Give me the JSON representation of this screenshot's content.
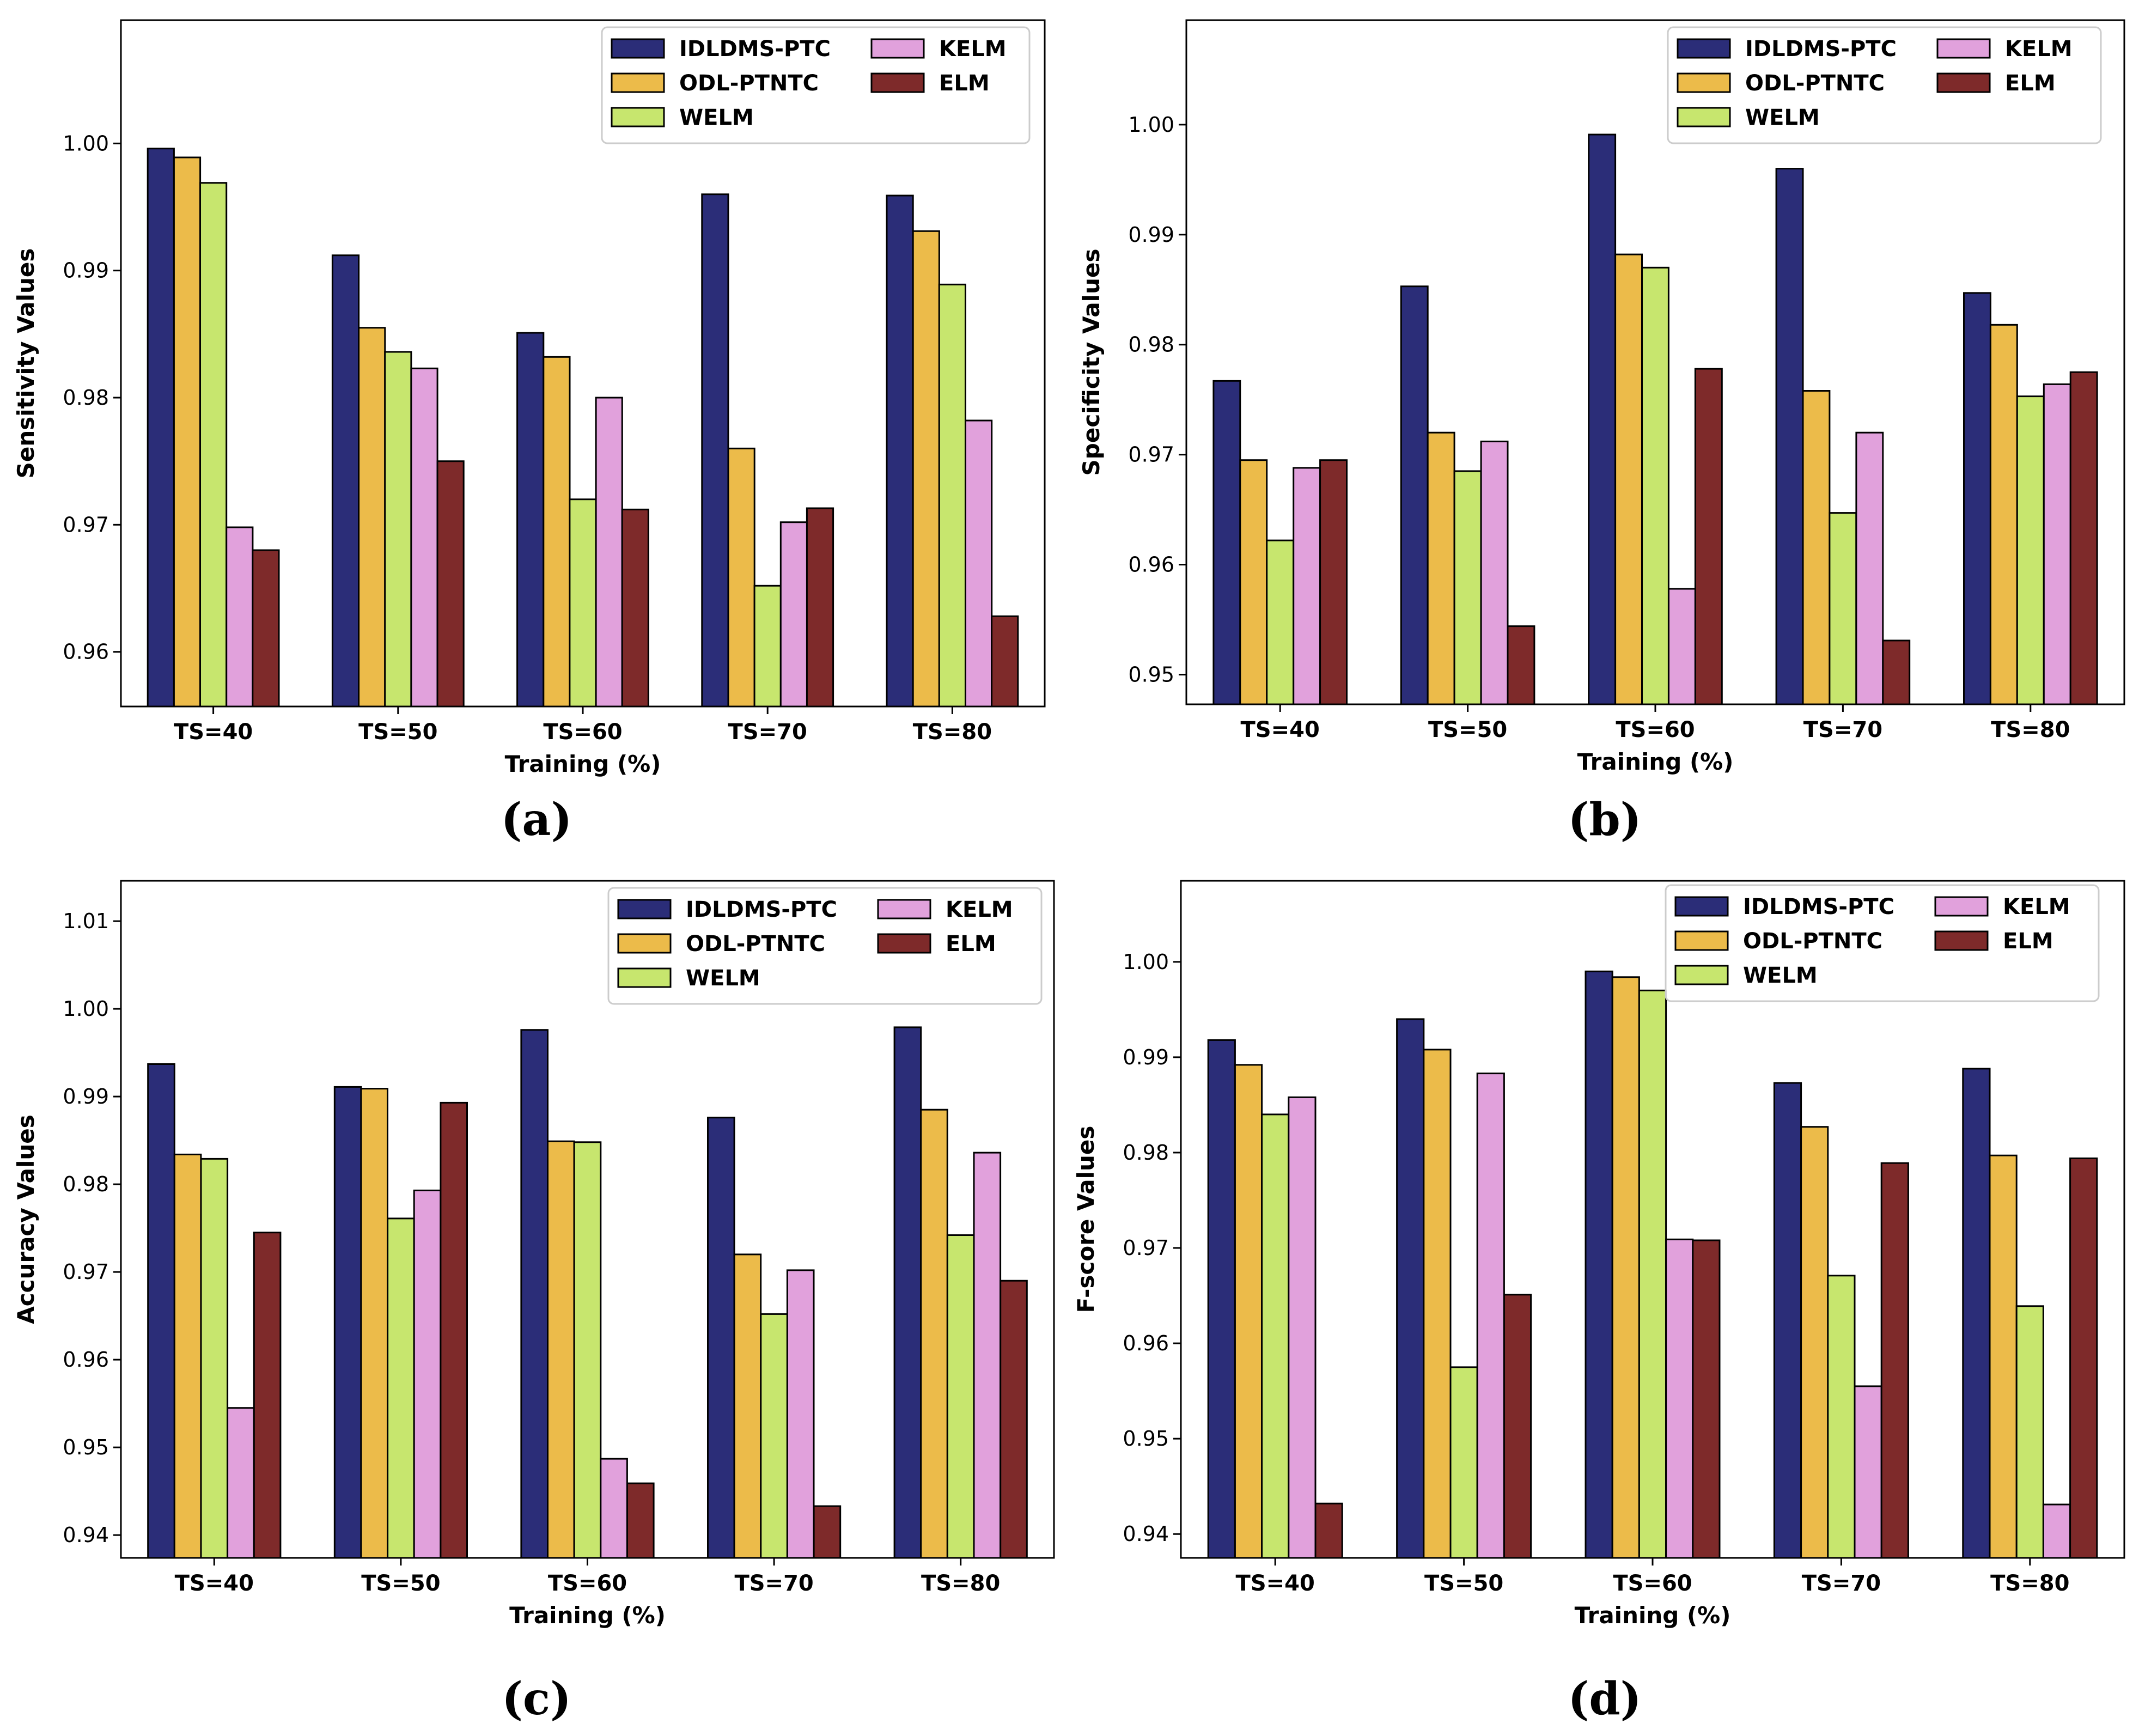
{
  "colors": {
    "IDLDMS-PTC": "#2b2d78",
    "ODL-PTNTC": "#ecbb4a",
    "WELM": "#c7e66e",
    "KELM": "#e1a1dc",
    "ELM": "#7e2a2a"
  },
  "chart_data": [
    {
      "type": "bar",
      "panel_label": "(a)",
      "xlabel": "Training (%)",
      "ylabel": "Sensitivity Values",
      "categories": [
        "TS=40",
        "TS=50",
        "TS=60",
        "TS=70",
        "TS=80"
      ],
      "ylim": [
        0.9557,
        1.0097
      ],
      "yticks": [
        0.96,
        0.97,
        0.98,
        0.99,
        1.0
      ],
      "ytick_labels": [
        "0.96",
        "0.97",
        "0.98",
        "0.99",
        "1.00"
      ],
      "legend_position": "top-right",
      "series": [
        {
          "name": "IDLDMS-PTC",
          "values": [
            0.9996,
            0.9912,
            0.9851,
            0.996,
            0.9959
          ]
        },
        {
          "name": "ODL-PTNTC",
          "values": [
            0.9989,
            0.9855,
            0.9832,
            0.976,
            0.9931
          ]
        },
        {
          "name": "WELM",
          "values": [
            0.9969,
            0.9836,
            0.972,
            0.9652,
            0.9889
          ]
        },
        {
          "name": "KELM",
          "values": [
            0.9698,
            0.9823,
            0.98,
            0.9702,
            0.9782
          ]
        },
        {
          "name": "ELM",
          "values": [
            0.968,
            0.975,
            0.9712,
            0.9713,
            0.9628
          ]
        }
      ]
    },
    {
      "type": "bar",
      "panel_label": "(b)",
      "xlabel": "Training (%)",
      "ylabel": "Specificity Values",
      "categories": [
        "TS=40",
        "TS=50",
        "TS=60",
        "TS=70",
        "TS=80"
      ],
      "ylim": [
        0.9473,
        1.0095
      ],
      "yticks": [
        0.95,
        0.96,
        0.97,
        0.98,
        0.99,
        1.0
      ],
      "ytick_labels": [
        "0.95",
        "0.96",
        "0.97",
        "0.98",
        "0.99",
        "1.00"
      ],
      "legend_position": "top-right",
      "series": [
        {
          "name": "IDLDMS-PTC",
          "values": [
            0.9767,
            0.9853,
            0.9991,
            0.996,
            0.9847
          ]
        },
        {
          "name": "ODL-PTNTC",
          "values": [
            0.9695,
            0.972,
            0.9882,
            0.9758,
            0.9818
          ]
        },
        {
          "name": "WELM",
          "values": [
            0.9622,
            0.9685,
            0.987,
            0.9647,
            0.9753
          ]
        },
        {
          "name": "KELM",
          "values": [
            0.9688,
            0.9712,
            0.9578,
            0.972,
            0.9764
          ]
        },
        {
          "name": "ELM",
          "values": [
            0.9695,
            0.9544,
            0.9778,
            0.9531,
            0.9775
          ]
        }
      ]
    },
    {
      "type": "bar",
      "panel_label": "(c)",
      "xlabel": "Training (%)",
      "ylabel": "Accuracy Values",
      "categories": [
        "TS=40",
        "TS=50",
        "TS=60",
        "TS=70",
        "TS=80"
      ],
      "ylim": [
        0.9374,
        1.0146
      ],
      "yticks": [
        0.94,
        0.95,
        0.96,
        0.97,
        0.98,
        0.99,
        1.0,
        1.01
      ],
      "ytick_labels": [
        "0.94",
        "0.95",
        "0.96",
        "0.97",
        "0.98",
        "0.99",
        "1.00",
        "1.01"
      ],
      "legend_position": "top-right",
      "series": [
        {
          "name": "IDLDMS-PTC",
          "values": [
            0.9937,
            0.9911,
            0.9976,
            0.9876,
            0.9979
          ]
        },
        {
          "name": "ODL-PTNTC",
          "values": [
            0.9834,
            0.9909,
            0.9849,
            0.972,
            0.9885
          ]
        },
        {
          "name": "WELM",
          "values": [
            0.9829,
            0.9761,
            0.9848,
            0.9652,
            0.9742
          ]
        },
        {
          "name": "KELM",
          "values": [
            0.9545,
            0.9793,
            0.9487,
            0.9702,
            0.9836
          ]
        },
        {
          "name": "ELM",
          "values": [
            0.9745,
            0.9893,
            0.9459,
            0.9433,
            0.969
          ]
        }
      ]
    },
    {
      "type": "bar",
      "panel_label": "(d)",
      "xlabel": "Training (%)",
      "ylabel": "F-score Values",
      "categories": [
        "TS=40",
        "TS=50",
        "TS=60",
        "TS=70",
        "TS=80"
      ],
      "ylim": [
        0.9375,
        1.0085
      ],
      "yticks": [
        0.94,
        0.95,
        0.96,
        0.97,
        0.98,
        0.99,
        1.0
      ],
      "ytick_labels": [
        "0.94",
        "0.95",
        "0.96",
        "0.97",
        "0.98",
        "0.99",
        "1.00"
      ],
      "legend_position": "top-right",
      "series": [
        {
          "name": "IDLDMS-PTC",
          "values": [
            0.9918,
            0.994,
            0.999,
            0.9873,
            0.9888
          ]
        },
        {
          "name": "ODL-PTNTC",
          "values": [
            0.9892,
            0.9908,
            0.9984,
            0.9827,
            0.9797
          ]
        },
        {
          "name": "WELM",
          "values": [
            0.984,
            0.9575,
            0.997,
            0.9671,
            0.9639
          ]
        },
        {
          "name": "KELM",
          "values": [
            0.9858,
            0.9883,
            0.9709,
            0.9555,
            0.9431
          ]
        },
        {
          "name": "ELM",
          "values": [
            0.9432,
            0.9651,
            0.9708,
            0.9789,
            0.9794
          ]
        }
      ]
    }
  ]
}
